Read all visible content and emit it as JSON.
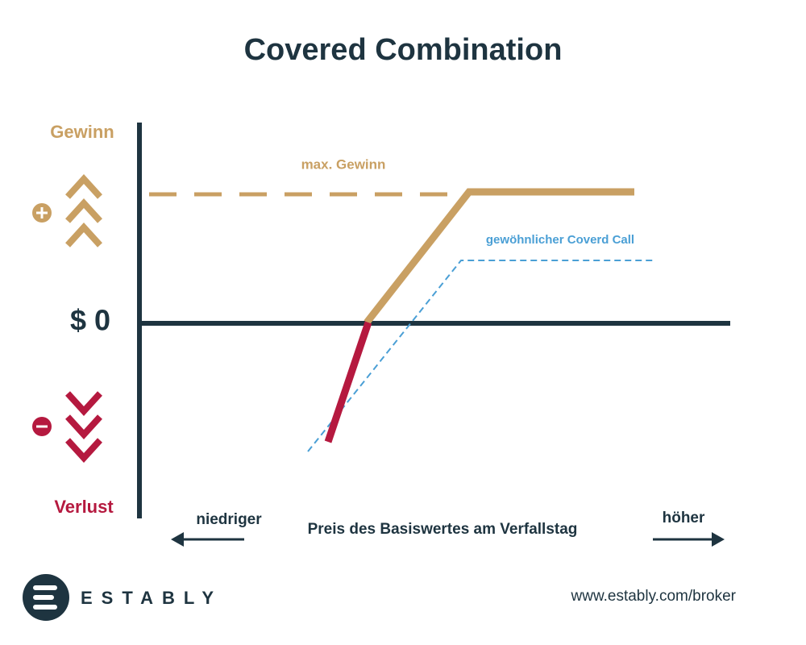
{
  "title": "Covered Combination",
  "y_axis": {
    "top_label": "Gewinn",
    "bottom_label": "Verlust",
    "zero_label": "$ 0"
  },
  "annotations": {
    "max_gain": "max. Gewinn",
    "covered_call": "gewöhnlicher Coverd Call"
  },
  "x_axis": {
    "lower": "niedriger",
    "higher": "höher",
    "label": "Preis des Basiswertes am Verfallstag"
  },
  "footer": {
    "brand": "ESTABLY",
    "url": "www.estably.com/broker"
  }
}
